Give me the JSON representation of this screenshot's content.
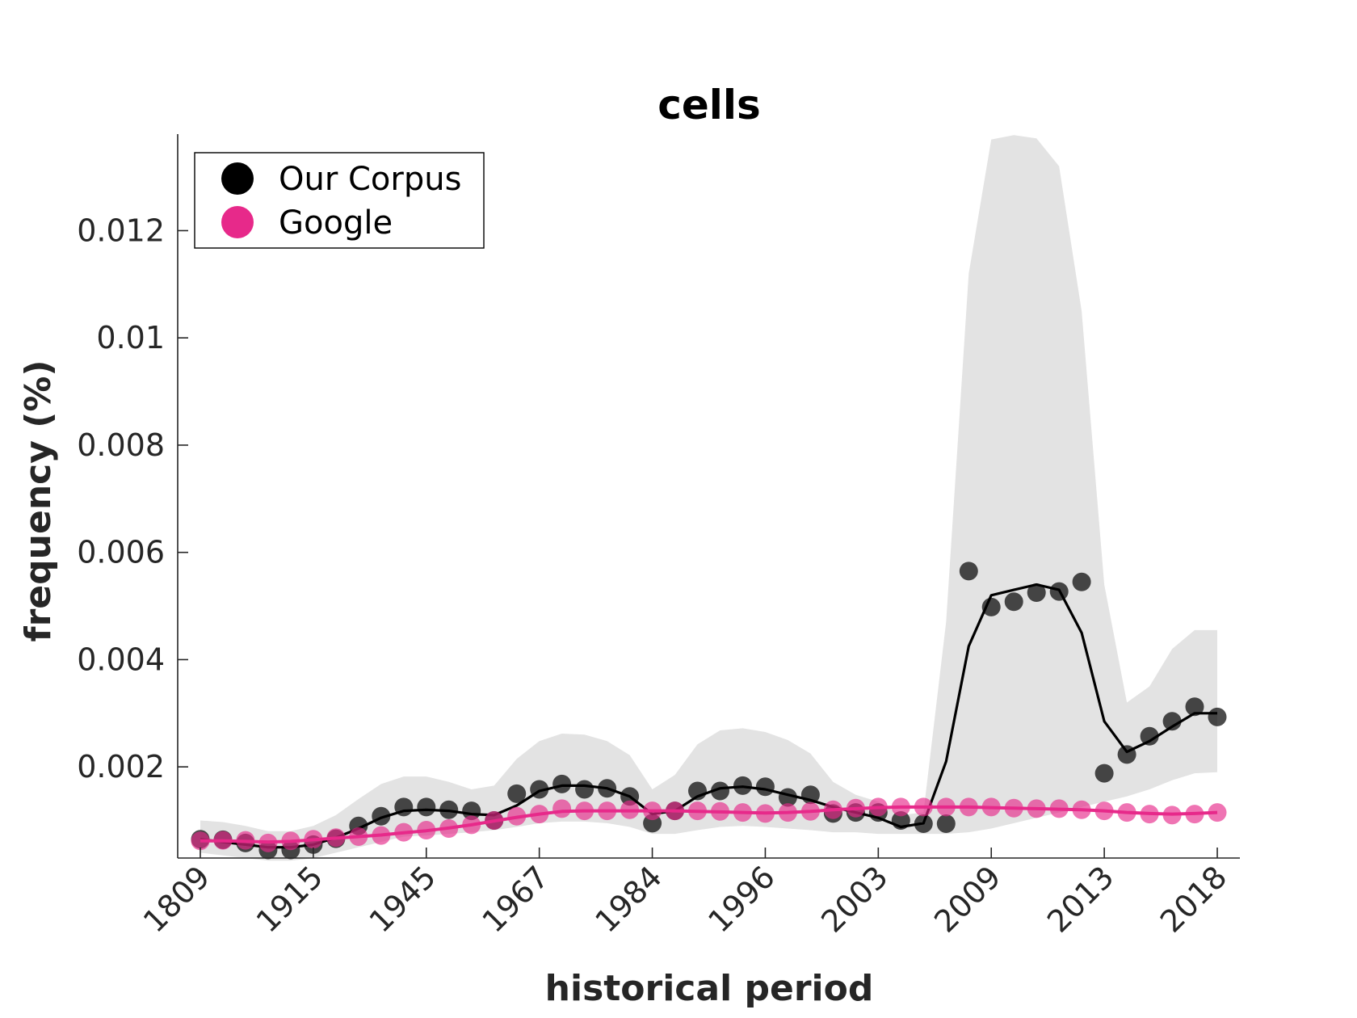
{
  "chart_data": {
    "type": "scatter",
    "title": "cells",
    "xlabel": "historical period",
    "ylabel": "frequency (%)",
    "x_tick_labels": [
      "1809",
      "1915",
      "1945",
      "1967",
      "1984",
      "1996",
      "2003",
      "2009",
      "2013",
      "2018"
    ],
    "x_tick_positions": [
      1,
      6,
      11,
      16,
      21,
      26,
      31,
      36,
      41,
      46
    ],
    "y_ticks": [
      0.002,
      0.004,
      0.006,
      0.008,
      0.01,
      0.012
    ],
    "y_tick_labels": [
      "0.002",
      "0.004",
      "0.006",
      "0.008",
      "0.01",
      "0.012"
    ],
    "xlim": [
      0,
      47
    ],
    "ylim": [
      0.0003,
      0.0138
    ],
    "grid": false,
    "legend_position": "top-left",
    "series": [
      {
        "name": "Our Corpus",
        "color": "#000000",
        "points": [
          0.00065,
          0.00064,
          0.00058,
          0.00045,
          0.00045,
          0.00055,
          0.00066,
          0.0009,
          0.00108,
          0.00125,
          0.00125,
          0.0012,
          0.00118,
          0.001,
          0.0015,
          0.00158,
          0.00168,
          0.00158,
          0.0016,
          0.00145,
          0.00095,
          0.00118,
          0.00155,
          0.00155,
          0.00165,
          0.00163,
          0.00143,
          0.00148,
          0.00113,
          0.00115,
          0.00115,
          0.001,
          0.00094,
          0.00094,
          0.00565,
          0.00498,
          0.00508,
          0.00525,
          0.00527,
          0.00545,
          0.00188,
          0.00223,
          0.00257,
          0.00285,
          0.00312,
          0.00293
        ],
        "smooth": [
          0.00065,
          0.0006,
          0.00055,
          0.0005,
          0.0005,
          0.00055,
          0.00068,
          0.00085,
          0.00105,
          0.00118,
          0.0012,
          0.00118,
          0.00112,
          0.0011,
          0.00128,
          0.00155,
          0.00165,
          0.00165,
          0.0016,
          0.00145,
          0.00112,
          0.00118,
          0.00145,
          0.0016,
          0.00163,
          0.00158,
          0.00148,
          0.00138,
          0.00125,
          0.00115,
          0.00105,
          0.00088,
          0.00095,
          0.0021,
          0.00425,
          0.0052,
          0.0053,
          0.0054,
          0.0053,
          0.0045,
          0.00285,
          0.00228,
          0.00248,
          0.00275,
          0.003,
          0.003
        ],
        "band_upper": [
          0.001,
          0.00097,
          0.0009,
          0.0008,
          0.0008,
          0.0009,
          0.0011,
          0.0014,
          0.00168,
          0.00182,
          0.00182,
          0.00172,
          0.00158,
          0.00165,
          0.00215,
          0.00248,
          0.00262,
          0.0026,
          0.00248,
          0.00222,
          0.00158,
          0.00185,
          0.00242,
          0.00268,
          0.00272,
          0.00265,
          0.0025,
          0.00225,
          0.00172,
          0.00148,
          0.00135,
          0.0011,
          0.00115,
          0.0047,
          0.0112,
          0.0137,
          0.01378,
          0.01372,
          0.0132,
          0.0105,
          0.0054,
          0.0032,
          0.0035,
          0.0042,
          0.00455,
          0.00455
        ],
        "band_lower": [
          0.0004,
          0.00035,
          0.0003,
          0.00025,
          0.00025,
          0.0003,
          0.0004,
          0.0005,
          0.0006,
          0.0007,
          0.00072,
          0.00075,
          0.00078,
          0.00082,
          0.00088,
          0.00095,
          0.00098,
          0.00098,
          0.00095,
          0.00088,
          0.00075,
          0.00075,
          0.00082,
          0.00088,
          0.0009,
          0.00088,
          0.00085,
          0.00082,
          0.00078,
          0.00078,
          0.00075,
          0.00075,
          0.00075,
          0.00075,
          0.00078,
          0.00085,
          0.00095,
          0.00105,
          0.00115,
          0.00125,
          0.00135,
          0.00145,
          0.00158,
          0.00175,
          0.00188,
          0.0019
        ]
      },
      {
        "name": "Google",
        "color": "#e7298a",
        "points": [
          0.00062,
          0.00063,
          0.00063,
          0.00058,
          0.00062,
          0.00065,
          0.00068,
          0.0007,
          0.00072,
          0.00078,
          0.00082,
          0.00085,
          0.00092,
          0.001,
          0.00108,
          0.00112,
          0.00122,
          0.00118,
          0.00118,
          0.0012,
          0.00118,
          0.00118,
          0.00118,
          0.00117,
          0.00115,
          0.00113,
          0.00115,
          0.00117,
          0.0012,
          0.00123,
          0.00125,
          0.00125,
          0.00125,
          0.00125,
          0.00125,
          0.00125,
          0.00123,
          0.00122,
          0.00122,
          0.0012,
          0.00118,
          0.00115,
          0.00112,
          0.0011,
          0.00112,
          0.00115
        ],
        "smooth": [
          0.00062,
          0.00062,
          0.00061,
          0.0006,
          0.00061,
          0.00064,
          0.00067,
          0.0007,
          0.00073,
          0.00077,
          0.00081,
          0.00086,
          0.00092,
          0.00099,
          0.00106,
          0.00112,
          0.00117,
          0.00118,
          0.00118,
          0.00118,
          0.00118,
          0.00118,
          0.00117,
          0.00116,
          0.00115,
          0.00114,
          0.00115,
          0.00117,
          0.0012,
          0.00122,
          0.00124,
          0.00125,
          0.00125,
          0.00125,
          0.00125,
          0.00124,
          0.00123,
          0.00122,
          0.00121,
          0.0012,
          0.00118,
          0.00115,
          0.00113,
          0.00112,
          0.00113,
          0.00115
        ]
      }
    ]
  }
}
